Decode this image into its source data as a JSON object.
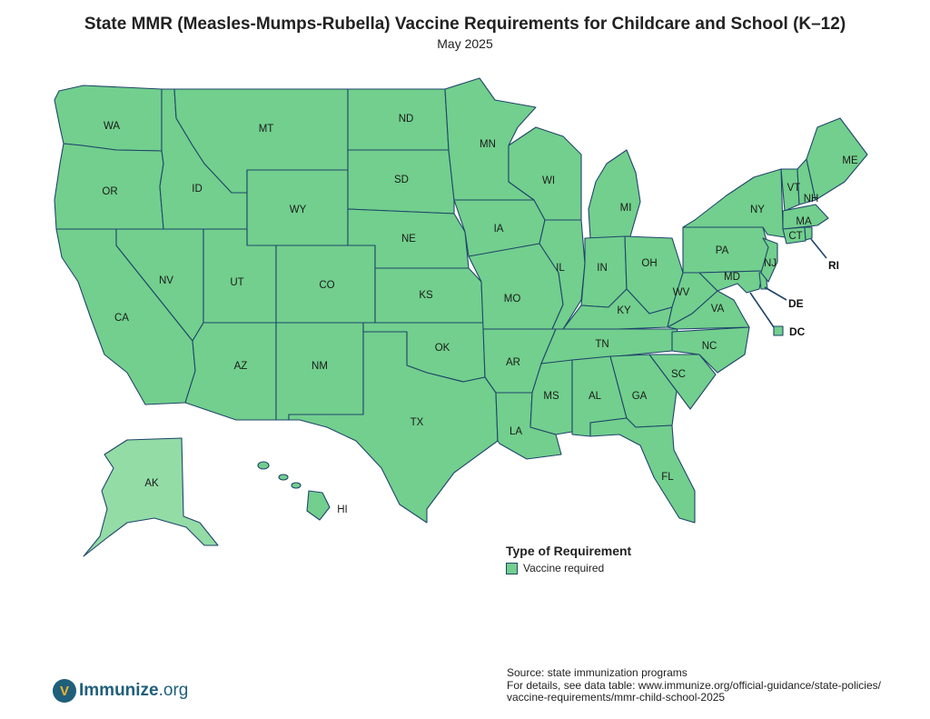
{
  "title": "State MMR (Measles-Mumps-Rubella) Vaccine Requirements for Childcare and School (K–12)",
  "subtitle": "May 2025",
  "colors": {
    "vaccine_required": "#72cf8d",
    "alaska_fill": "#93dca6",
    "border": "#20456b"
  },
  "states": {
    "WA": "WA",
    "OR": "OR",
    "CA": "CA",
    "ID": "ID",
    "NV": "NV",
    "MT": "MT",
    "WY": "WY",
    "UT": "UT",
    "AZ": "AZ",
    "CO": "CO",
    "NM": "NM",
    "ND": "ND",
    "SD": "SD",
    "NE": "NE",
    "KS": "KS",
    "OK": "OK",
    "TX": "TX",
    "MN": "MN",
    "IA": "IA",
    "MO": "MO",
    "AR": "AR",
    "LA": "LA",
    "WI": "WI",
    "IL": "IL",
    "MI": "MI",
    "IN": "IN",
    "OH": "OH",
    "KY": "KY",
    "TN": "TN",
    "MS": "MS",
    "AL": "AL",
    "GA": "GA",
    "FL": "FL",
    "SC": "SC",
    "NC": "NC",
    "VA": "VA",
    "WV": "WV",
    "PA": "PA",
    "NY": "NY",
    "VT": "VT",
    "NH": "NH",
    "ME": "ME",
    "MA": "MA",
    "CT": "CT",
    "NJ": "NJ",
    "MD": "MD",
    "AK": "AK",
    "HI": "HI",
    "RI": "RI",
    "DE": "DE",
    "DC": "DC"
  },
  "legend": {
    "title": "Type of Requirement",
    "items": [
      "Vaccine required"
    ]
  },
  "source": {
    "line1": "Source: state immunization programs",
    "line2": "For details, see data table: www.immunize.org/official-guidance/state-policies/",
    "line3": "vaccine-requirements/mmr-child-school-2025"
  },
  "logo": {
    "name": "Immunize",
    "suffix": ".org",
    "mark": "V"
  }
}
